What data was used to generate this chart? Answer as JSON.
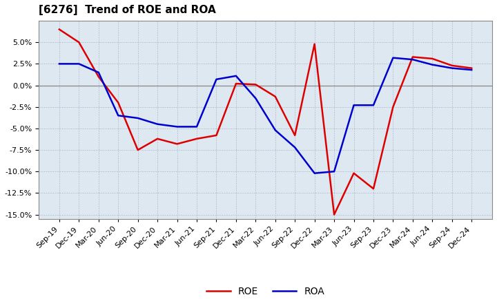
{
  "title": "[6276]  Trend of ROE and ROA",
  "x_labels": [
    "Sep-19",
    "Dec-19",
    "Mar-20",
    "Jun-20",
    "Sep-20",
    "Dec-20",
    "Mar-21",
    "Jun-21",
    "Sep-21",
    "Dec-21",
    "Mar-22",
    "Jun-22",
    "Sep-22",
    "Dec-22",
    "Mar-23",
    "Jun-23",
    "Sep-23",
    "Dec-23",
    "Mar-24",
    "Jun-24",
    "Sep-24",
    "Dec-24"
  ],
  "ROE": [
    6.5,
    5.0,
    1.0,
    -2.0,
    -7.5,
    -6.2,
    -6.8,
    -6.2,
    -5.8,
    0.2,
    0.1,
    -1.3,
    -5.8,
    4.8,
    -15.0,
    -10.2,
    -12.0,
    -2.5,
    3.3,
    3.1,
    2.3,
    2.0
  ],
  "ROA": [
    2.5,
    2.5,
    1.5,
    -3.5,
    -3.8,
    -4.5,
    -4.8,
    -4.8,
    0.7,
    1.1,
    -1.5,
    -5.2,
    -7.2,
    -10.2,
    -10.0,
    -2.3,
    -2.3,
    3.2,
    3.0,
    2.4,
    2.0,
    1.8
  ],
  "roe_color": "#dd0000",
  "roa_color": "#0000cc",
  "ylim": [
    -15.5,
    7.5
  ],
  "yticks": [
    -15.0,
    -12.5,
    -10.0,
    -7.5,
    -5.0,
    -2.5,
    0.0,
    2.5,
    5.0
  ],
  "bg_color": "#ffffff",
  "plot_bg_color": "#dde8f0",
  "grid_color": "#aaaacc",
  "line_width": 1.8,
  "title_fontsize": 11,
  "tick_fontsize": 8,
  "legend_fontsize": 10
}
